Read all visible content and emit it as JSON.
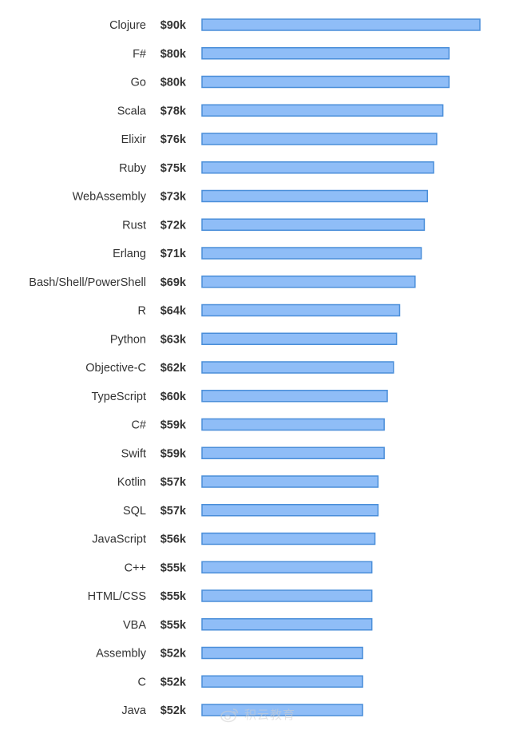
{
  "chart_data": {
    "type": "bar",
    "orientation": "horizontal",
    "categories": [
      "Clojure",
      "F#",
      "Go",
      "Scala",
      "Elixir",
      "Ruby",
      "WebAssembly",
      "Rust",
      "Erlang",
      "Bash/Shell/PowerShell",
      "R",
      "Python",
      "Objective-C",
      "TypeScript",
      "C#",
      "Swift",
      "Kotlin",
      "SQL",
      "JavaScript",
      "C++",
      "HTML/CSS",
      "VBA",
      "Assembly",
      "C",
      "Java"
    ],
    "values": [
      90,
      80,
      80,
      78,
      76,
      75,
      73,
      72,
      71,
      69,
      64,
      63,
      62,
      60,
      59,
      59,
      57,
      57,
      56,
      55,
      55,
      55,
      52,
      52,
      52
    ],
    "value_labels": [
      "$90k",
      "$80k",
      "$80k",
      "$78k",
      "$76k",
      "$75k",
      "$73k",
      "$72k",
      "$71k",
      "$69k",
      "$64k",
      "$63k",
      "$62k",
      "$60k",
      "$59k",
      "$59k",
      "$57k",
      "$57k",
      "$56k",
      "$55k",
      "$55k",
      "$55k",
      "$52k",
      "$52k",
      "$52k"
    ],
    "title": "",
    "xlabel": "",
    "ylabel": "",
    "xlim": [
      0,
      90
    ],
    "grid": false,
    "bar_color": "#8fbdf7",
    "bar_border_color": "#4a8ed9"
  },
  "watermark": {
    "icon": "weibo-icon",
    "text": "积云教育"
  }
}
